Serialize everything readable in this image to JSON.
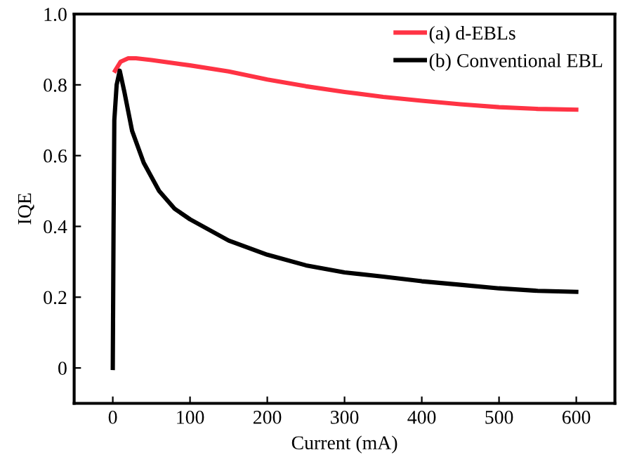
{
  "chart_data": {
    "type": "line",
    "xlabel": "Current (mA)",
    "ylabel": "IQE",
    "xlim": [
      -50,
      650
    ],
    "ylim": [
      -0.1,
      1.0
    ],
    "xticks": [
      0,
      100,
      200,
      300,
      400,
      500,
      600
    ],
    "yticks": [
      0,
      0.2,
      0.4,
      0.6,
      0.8,
      {
        "value": 1.0,
        "label": "1.0"
      }
    ],
    "grid": false,
    "legend": "top right",
    "series": [
      {
        "name": "(a) d-EBLs",
        "color": "#ff3344",
        "x": [
          3,
          10,
          20,
          30,
          50,
          100,
          150,
          200,
          250,
          300,
          350,
          400,
          450,
          500,
          550,
          600
        ],
        "values": [
          0.84,
          0.865,
          0.875,
          0.875,
          0.87,
          0.855,
          0.838,
          0.815,
          0.796,
          0.78,
          0.766,
          0.755,
          0.745,
          0.737,
          0.732,
          0.73
        ]
      },
      {
        "name": "(b) Conventional EBL",
        "color": "#000000",
        "x": [
          0,
          1,
          2,
          5,
          9,
          15,
          25,
          40,
          60,
          80,
          100,
          150,
          200,
          250,
          300,
          350,
          400,
          450,
          500,
          550,
          600
        ],
        "values": [
          0,
          0.4,
          0.7,
          0.8,
          0.84,
          0.78,
          0.67,
          0.58,
          0.5,
          0.45,
          0.42,
          0.36,
          0.32,
          0.29,
          0.27,
          0.258,
          0.245,
          0.235,
          0.225,
          0.218,
          0.215
        ]
      }
    ]
  }
}
